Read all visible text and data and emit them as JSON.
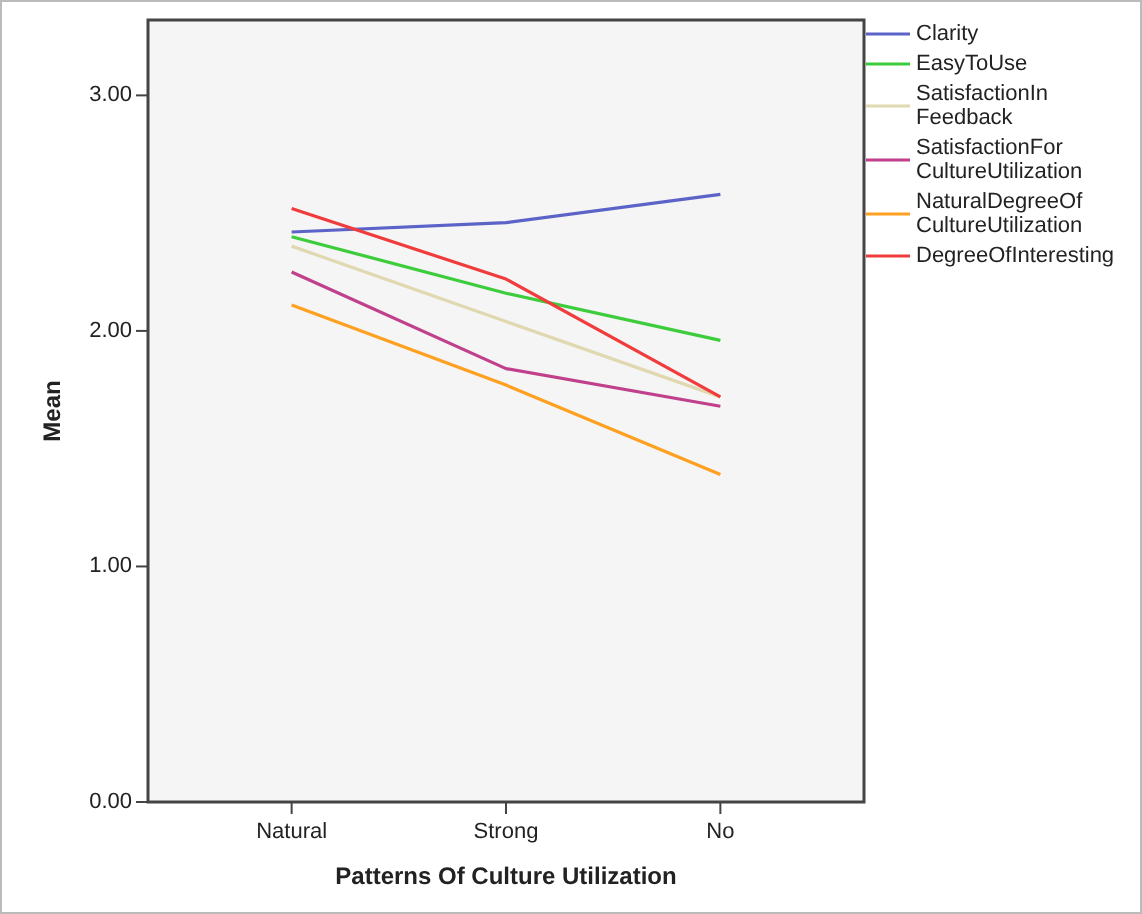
{
  "chart_data": {
    "type": "line",
    "xlabel": "Patterns Of Culture Utilization",
    "ylabel": "Mean",
    "categories": [
      "Natural",
      "Strong",
      "No"
    ],
    "series": [
      {
        "name": "Clarity",
        "color": "#5b63c8",
        "values": [
          2.42,
          2.46,
          2.58
        ]
      },
      {
        "name": "EasyToUse",
        "color": "#3ccc3c",
        "values": [
          2.4,
          2.16,
          1.96
        ]
      },
      {
        "name": "SatisfactionInFeedback",
        "color": "#e0d8b0",
        "values": [
          2.36,
          2.04,
          1.72
        ]
      },
      {
        "name": "SatisfactionForCultureUtilization",
        "color": "#c0408c",
        "values": [
          2.25,
          1.84,
          1.68
        ]
      },
      {
        "name": "NaturalDegreeOfCultureUtilization",
        "color": "#ffa020",
        "values": [
          2.11,
          1.77,
          1.39
        ]
      },
      {
        "name": "DegreeOfInteresting",
        "color": "#f03c3c",
        "values": [
          2.52,
          2.22,
          1.72
        ]
      }
    ],
    "ylim": [
      0,
      3.32
    ],
    "yticks": [
      {
        "value": 0,
        "label": "0.00"
      },
      {
        "value": 1,
        "label": "1.00"
      },
      {
        "value": 2,
        "label": "2.00"
      },
      {
        "value": 3,
        "label": "3.00"
      }
    ],
    "grid": false,
    "legend": "top right",
    "marker": "none",
    "line_style": "solid"
  }
}
